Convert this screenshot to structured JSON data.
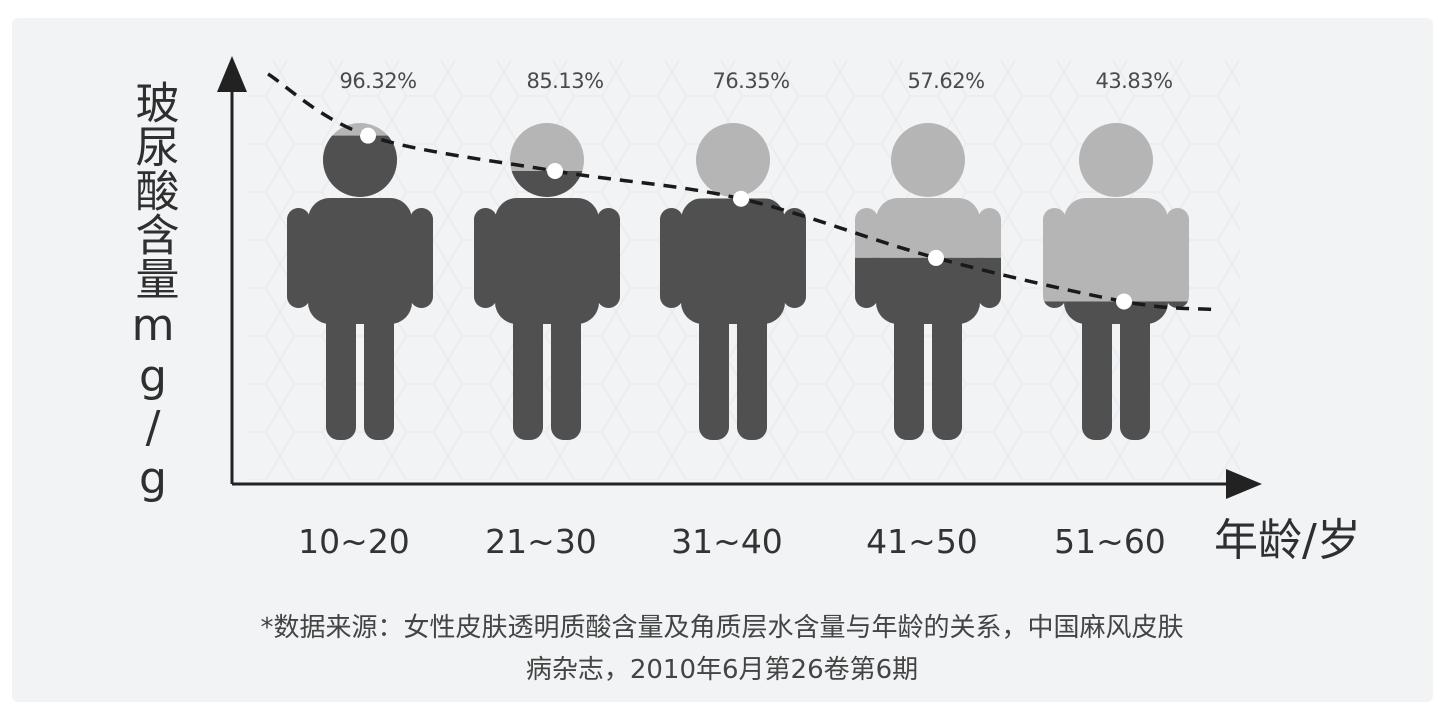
{
  "chart_data": {
    "type": "bar",
    "categories": [
      "10~20",
      "21~30",
      "31~40",
      "41~50",
      "51~60"
    ],
    "values": [
      96.32,
      85.13,
      76.35,
      57.62,
      43.83
    ],
    "value_labels": [
      "96.32%",
      "85.13%",
      "76.35%",
      "57.62%",
      "43.83%"
    ],
    "ylabel": "玻尿酸含量mg/g",
    "xlabel": "年龄/岁",
    "ylim": [
      0,
      100
    ],
    "trend_line": "dashed",
    "colors": {
      "filled": "#505050",
      "empty": "#b5b5b5",
      "trend": "#1a1a1a",
      "axis": "#222222",
      "background": "#f1f3f5"
    }
  },
  "footnote": {
    "line1": "*数据来源：女性皮肤透明质酸含量及角质层水含量与年龄的关系，中国麻风皮肤",
    "line2": "病杂志，2010年6月第26卷第6期"
  }
}
